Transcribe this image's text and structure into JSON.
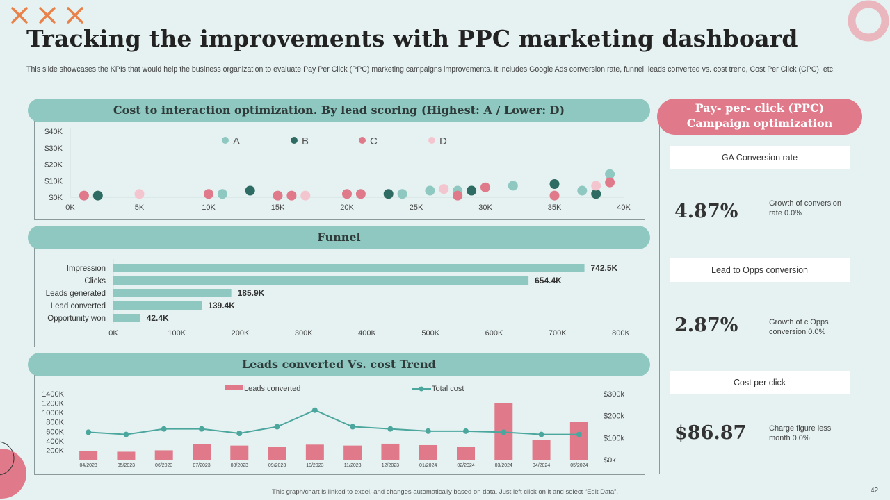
{
  "title": "Tracking the improvements with PPC marketing dashboard",
  "subtitle": "This slide showcases the KPIs that would help the business organization to evaluate Pay Per Click (PPC) marketing campaigns improvements. It includes Google Ads conversion rate, funnel, leads converted vs. cost trend, Cost Per Click (CPC), etc.",
  "sections": {
    "scatter_title": "Cost to interaction optimization. By lead scoring (Highest: A / Lower: D)",
    "funnel_title": "Funnel",
    "trend_title": "Leads converted Vs. cost Trend"
  },
  "right_panel": {
    "header_line1": "Pay- per- click (PPC)",
    "header_line2": "Campaign optimization",
    "kpis": [
      {
        "label": "GA Conversion  rate",
        "value": "4.87%",
        "note": "Growth of conversion rate 0.0%"
      },
      {
        "label": "Lead to Opps conversion",
        "value": "2.87%",
        "note": "Growth of c Opps conversion 0.0%"
      },
      {
        "label": "Cost per click",
        "value": "$86.87",
        "note": "Charge figure less month 0.0%"
      }
    ]
  },
  "footer": "This graph/chart is linked to excel, and changes automatically based on data. Just left click on it and select “Edit Data”.",
  "page_number": "42",
  "colors": {
    "A": "#8ec8c1",
    "B": "#2e6b62",
    "C": "#e07a8a",
    "D": "#f3c6cf",
    "accent_teal": "#8ec8c1",
    "accent_pink": "#e07a8a",
    "orange_x": "#e8824a"
  },
  "chart_data": [
    {
      "type": "scatter",
      "title": "Cost to interaction optimization. By lead scoring (Highest: A / Lower: D)",
      "xlim": [
        0,
        40000
      ],
      "ylim": [
        0,
        40000
      ],
      "x_ticks": [
        "0K",
        "5K",
        "10K",
        "15K",
        "20K",
        "25K",
        "30K",
        "35K",
        "40K"
      ],
      "y_ticks": [
        "$0K",
        "$10K",
        "$20K",
        "$30K",
        "$40K"
      ],
      "legend": [
        "A",
        "B",
        "C",
        "D"
      ],
      "series": [
        {
          "name": "A",
          "points": [
            [
              11000,
              2000
            ],
            [
              24000,
              2000
            ],
            [
              26000,
              4000
            ],
            [
              28000,
              4000
            ],
            [
              32000,
              7000
            ],
            [
              37000,
              4000
            ],
            [
              39000,
              14000
            ]
          ]
        },
        {
          "name": "B",
          "points": [
            [
              2000,
              1000
            ],
            [
              13000,
              4000
            ],
            [
              23000,
              2000
            ],
            [
              29000,
              4000
            ],
            [
              35000,
              8000
            ],
            [
              38000,
              2000
            ]
          ]
        },
        {
          "name": "C",
          "points": [
            [
              1000,
              1000
            ],
            [
              10000,
              2000
            ],
            [
              15000,
              1000
            ],
            [
              16000,
              1000
            ],
            [
              20000,
              2000
            ],
            [
              21000,
              2000
            ],
            [
              28000,
              1000
            ],
            [
              30000,
              6000
            ],
            [
              35000,
              1000
            ],
            [
              39000,
              9000
            ]
          ]
        },
        {
          "name": "D",
          "points": [
            [
              5000,
              2000
            ],
            [
              17000,
              1000
            ],
            [
              27000,
              5000
            ],
            [
              38000,
              7000
            ]
          ]
        }
      ]
    },
    {
      "type": "bar",
      "orientation": "horizontal",
      "title": "Funnel",
      "categories": [
        "Impression",
        "Clicks",
        "Leads generated",
        "Lead converted",
        "Opportunity won"
      ],
      "values": [
        742.5,
        654.4,
        185.9,
        139.4,
        42.4
      ],
      "value_labels": [
        "742.5K",
        "654.4K",
        "185.9K",
        "139.4K",
        "42.4K"
      ],
      "xlim": [
        0,
        800
      ],
      "x_ticks": [
        "0K",
        "100K",
        "200K",
        "300K",
        "400K",
        "500K",
        "600K",
        "700K",
        "800K"
      ]
    },
    {
      "type": "bar",
      "title": "Leads converted Vs. cost Trend",
      "categories": [
        "04/2023",
        "05/2023",
        "06/2023",
        "07/2023",
        "08/2023",
        "09/2023",
        "10/2023",
        "11/2023",
        "12/2023",
        "01/2024",
        "02/2024",
        "03/2024",
        "04/2024",
        "05/2024"
      ],
      "series": [
        {
          "name": "Leads converted",
          "type": "bar",
          "axis": "left",
          "values": [
            180,
            170,
            200,
            330,
            300,
            270,
            320,
            300,
            340,
            310,
            280,
            1200,
            420,
            800
          ]
        },
        {
          "name": "Total cost",
          "type": "line",
          "axis": "right",
          "values": [
            125,
            115,
            140,
            140,
            120,
            150,
            225,
            150,
            140,
            130,
            130,
            125,
            115,
            115
          ]
        }
      ],
      "y_left_ticks": [
        "200K",
        "400K",
        "600K",
        "800K",
        "1000K",
        "1200K",
        "1400K"
      ],
      "y_left_lim": [
        0,
        1400
      ],
      "y_right_ticks": [
        "$0k",
        "$100k",
        "$200k",
        "$300k"
      ],
      "y_right_lim": [
        0,
        300
      ]
    }
  ]
}
